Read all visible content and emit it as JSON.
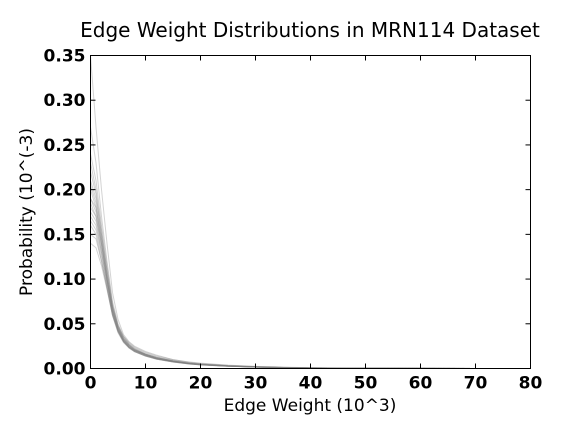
{
  "chart_data": {
    "type": "line",
    "title": "Edge Weight Distributions in MRN114 Dataset",
    "xlabel": "Edge Weight (10^3)",
    "ylabel": "Probability (10^(-3)",
    "xlim": [
      0,
      80
    ],
    "ylim": [
      0,
      0.35
    ],
    "xticks": [
      0,
      10,
      20,
      30,
      40,
      50,
      60,
      70,
      80
    ],
    "yticks": [
      0.0,
      0.05,
      0.1,
      0.15,
      0.2,
      0.25,
      0.3,
      0.35
    ],
    "xtick_labels": [
      "0",
      "10",
      "20",
      "30",
      "40",
      "50",
      "60",
      "70",
      "80"
    ],
    "ytick_labels": [
      "0.00",
      "0.05",
      "0.10",
      "0.15",
      "0.20",
      "0.25",
      "0.30",
      "0.35"
    ],
    "grid": false,
    "legend": "none",
    "series_color": "#808080",
    "x": [
      0,
      1,
      2,
      3,
      4,
      5,
      6,
      7,
      8,
      10,
      12,
      15,
      18,
      20,
      25,
      30,
      35,
      40,
      50,
      60,
      70,
      80
    ],
    "series": [
      {
        "values": [
          0.35,
          0.27,
          0.2,
          0.14,
          0.085,
          0.055,
          0.038,
          0.03,
          0.025,
          0.019,
          0.015,
          0.01,
          0.007,
          0.0055,
          0.0035,
          0.0022,
          0.0013,
          0.0008,
          0.0003,
          0.0001,
          5e-05,
          0.0
        ]
      },
      {
        "values": [
          0.27,
          0.23,
          0.17,
          0.12,
          0.075,
          0.05,
          0.036,
          0.028,
          0.023,
          0.017,
          0.013,
          0.009,
          0.006,
          0.005,
          0.003,
          0.0019,
          0.0011,
          0.0007,
          0.0003,
          0.0001,
          5e-05,
          0.0
        ]
      },
      {
        "values": [
          0.24,
          0.21,
          0.16,
          0.115,
          0.072,
          0.048,
          0.035,
          0.027,
          0.022,
          0.016,
          0.012,
          0.0085,
          0.0058,
          0.0047,
          0.0029,
          0.0018,
          0.0011,
          0.0007,
          0.0003,
          0.0001,
          5e-05,
          0.0
        ]
      },
      {
        "values": [
          0.22,
          0.195,
          0.15,
          0.11,
          0.07,
          0.047,
          0.034,
          0.027,
          0.022,
          0.016,
          0.012,
          0.0085,
          0.0058,
          0.0047,
          0.0029,
          0.0018,
          0.0011,
          0.0007,
          0.0003,
          0.0001,
          5e-05,
          0.0
        ]
      },
      {
        "values": [
          0.21,
          0.19,
          0.15,
          0.105,
          0.068,
          0.046,
          0.033,
          0.026,
          0.021,
          0.016,
          0.012,
          0.0083,
          0.0057,
          0.0046,
          0.0028,
          0.0018,
          0.0011,
          0.0007,
          0.0003,
          0.0001,
          5e-05,
          0.0
        ]
      },
      {
        "values": [
          0.2,
          0.18,
          0.14,
          0.1,
          0.065,
          0.044,
          0.032,
          0.025,
          0.021,
          0.015,
          0.0115,
          0.008,
          0.0055,
          0.0045,
          0.0028,
          0.0017,
          0.001,
          0.0006,
          0.0003,
          0.0001,
          5e-05,
          0.0
        ]
      },
      {
        "values": [
          0.19,
          0.175,
          0.14,
          0.1,
          0.066,
          0.045,
          0.032,
          0.025,
          0.02,
          0.015,
          0.011,
          0.0078,
          0.0054,
          0.0044,
          0.0027,
          0.0017,
          0.001,
          0.0006,
          0.0003,
          0.0001,
          5e-05,
          0.0
        ]
      },
      {
        "values": [
          0.18,
          0.17,
          0.135,
          0.098,
          0.064,
          0.043,
          0.031,
          0.024,
          0.02,
          0.015,
          0.011,
          0.0078,
          0.0054,
          0.0044,
          0.0027,
          0.0017,
          0.001,
          0.0006,
          0.0003,
          0.0001,
          5e-05,
          0.0
        ]
      },
      {
        "values": [
          0.175,
          0.165,
          0.13,
          0.095,
          0.062,
          0.042,
          0.03,
          0.024,
          0.019,
          0.014,
          0.011,
          0.0075,
          0.0052,
          0.0042,
          0.0026,
          0.0016,
          0.001,
          0.0006,
          0.0003,
          0.0001,
          5e-05,
          0.0
        ]
      },
      {
        "values": [
          0.17,
          0.16,
          0.13,
          0.096,
          0.063,
          0.043,
          0.031,
          0.024,
          0.02,
          0.015,
          0.011,
          0.0078,
          0.0054,
          0.0044,
          0.0027,
          0.0017,
          0.001,
          0.0006,
          0.0003,
          0.0001,
          5e-05,
          0.0
        ]
      },
      {
        "values": [
          0.165,
          0.155,
          0.125,
          0.092,
          0.06,
          0.041,
          0.03,
          0.023,
          0.019,
          0.014,
          0.0105,
          0.0073,
          0.005,
          0.0041,
          0.0025,
          0.0016,
          0.001,
          0.0006,
          0.0003,
          0.0001,
          5e-05,
          0.0
        ]
      },
      {
        "values": [
          0.16,
          0.15,
          0.12,
          0.09,
          0.059,
          0.04,
          0.029,
          0.023,
          0.019,
          0.014,
          0.0105,
          0.0073,
          0.005,
          0.0041,
          0.0025,
          0.0016,
          0.001,
          0.0006,
          0.0003,
          0.0001,
          5e-05,
          0.0
        ]
      },
      {
        "values": [
          0.15,
          0.145,
          0.12,
          0.09,
          0.06,
          0.041,
          0.03,
          0.023,
          0.019,
          0.014,
          0.0105,
          0.0073,
          0.005,
          0.0041,
          0.0025,
          0.0016,
          0.001,
          0.0006,
          0.0003,
          0.0001,
          5e-05,
          0.0
        ]
      },
      {
        "values": [
          0.14,
          0.135,
          0.115,
          0.088,
          0.06,
          0.042,
          0.031,
          0.024,
          0.02,
          0.015,
          0.011,
          0.0078,
          0.0054,
          0.0044,
          0.0027,
          0.0017,
          0.001,
          0.0006,
          0.0003,
          0.0001,
          5e-05,
          0.0
        ]
      },
      {
        "values": [
          0.19,
          0.18,
          0.145,
          0.105,
          0.07,
          0.048,
          0.036,
          0.029,
          0.024,
          0.018,
          0.014,
          0.01,
          0.0072,
          0.006,
          0.0038,
          0.0024,
          0.0015,
          0.0009,
          0.0004,
          0.00015,
          5e-05,
          0.0
        ]
      },
      {
        "values": [
          0.23,
          0.2,
          0.155,
          0.11,
          0.069,
          0.046,
          0.033,
          0.026,
          0.021,
          0.016,
          0.012,
          0.0083,
          0.0057,
          0.0046,
          0.0028,
          0.0018,
          0.0011,
          0.0007,
          0.0003,
          0.0001,
          5e-05,
          0.0
        ]
      },
      {
        "values": [
          0.185,
          0.17,
          0.138,
          0.1,
          0.066,
          0.045,
          0.033,
          0.026,
          0.021,
          0.016,
          0.0125,
          0.009,
          0.0063,
          0.0051,
          0.0032,
          0.002,
          0.0012,
          0.0007,
          0.0003,
          0.0001,
          5e-05,
          0.0
        ]
      },
      {
        "values": [
          0.205,
          0.185,
          0.145,
          0.102,
          0.064,
          0.043,
          0.031,
          0.024,
          0.02,
          0.015,
          0.0112,
          0.0078,
          0.0054,
          0.0044,
          0.0027,
          0.0017,
          0.001,
          0.0006,
          0.0003,
          0.0001,
          5e-05,
          0.0
        ]
      }
    ]
  }
}
